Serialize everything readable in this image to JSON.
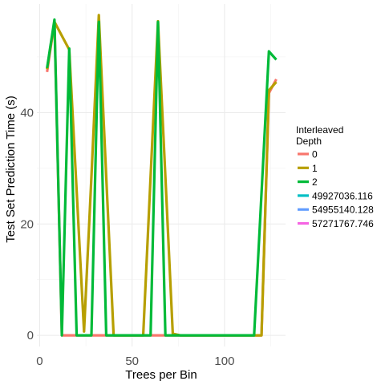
{
  "chart_data": {
    "type": "line",
    "xlabel": "Trees per Bin",
    "ylabel": "Test Set Prediction Time (s)",
    "xlim": [
      -1.5,
      133
    ],
    "ylim": [
      -2,
      59.5
    ],
    "x_ticks": [
      0,
      50,
      100
    ],
    "y_ticks": [
      0,
      20,
      40
    ],
    "grid": true,
    "legend": {
      "title": "Interleaved\nDepth",
      "placement": "right",
      "entries": [
        {
          "label": "0",
          "color": "#F8766D"
        },
        {
          "label": "1",
          "color": "#B79F00"
        },
        {
          "label": "2",
          "color": "#00BA38"
        },
        {
          "label": "49927036.116",
          "color": "#00BFC4"
        },
        {
          "label": "54955140.128",
          "color": "#619CFF"
        },
        {
          "label": "57271767.746",
          "color": "#F564E3"
        }
      ]
    },
    "series": [
      {
        "name": "0",
        "color": "#F8766D",
        "x": [
          4,
          8,
          12,
          16,
          20,
          24,
          28,
          32,
          36,
          40,
          44,
          48,
          52,
          56,
          60,
          64,
          68,
          72,
          76,
          80,
          84,
          88,
          92,
          96,
          100,
          104,
          108,
          112,
          116,
          120,
          124,
          128
        ],
        "y": [
          47.3,
          56.3,
          0,
          0,
          0,
          0,
          0,
          0,
          0,
          0,
          0,
          0,
          0,
          0,
          0,
          0,
          0,
          0,
          0,
          0,
          0,
          0,
          0,
          0,
          0,
          0,
          0,
          0,
          0,
          0,
          43.5,
          46
        ]
      },
      {
        "name": "1",
        "color": "#B79F00",
        "x": [
          4,
          8,
          12,
          16,
          20,
          24,
          28,
          32,
          36,
          40,
          44,
          48,
          52,
          56,
          60,
          64,
          68,
          72,
          76,
          80,
          84,
          88,
          92,
          96,
          100,
          104,
          108,
          112,
          116,
          120,
          124,
          128
        ],
        "y": [
          47.8,
          56.3,
          53.8,
          51.3,
          26,
          0.7,
          28.5,
          57.5,
          28.5,
          0,
          0,
          0,
          0,
          0,
          28.5,
          56.4,
          28.5,
          0.3,
          0,
          0,
          0,
          0,
          0,
          0,
          0,
          0,
          0,
          0,
          0,
          0,
          44,
          45.5
        ]
      },
      {
        "name": "2",
        "color": "#00BA38",
        "x": [
          4,
          8,
          12,
          16,
          20,
          24,
          28,
          32,
          36,
          40,
          44,
          48,
          52,
          56,
          60,
          64,
          68,
          72,
          76,
          80,
          84,
          88,
          92,
          96,
          100,
          104,
          108,
          112,
          116,
          120,
          124,
          128
        ],
        "y": [
          48,
          56.7,
          0,
          51.5,
          0,
          0,
          0,
          56.3,
          0,
          0,
          0,
          0,
          0,
          0,
          0,
          56.3,
          0,
          0,
          0,
          0,
          0,
          0,
          0,
          0,
          0,
          0,
          0,
          0,
          0,
          25.5,
          51,
          49.5
        ]
      }
    ]
  }
}
